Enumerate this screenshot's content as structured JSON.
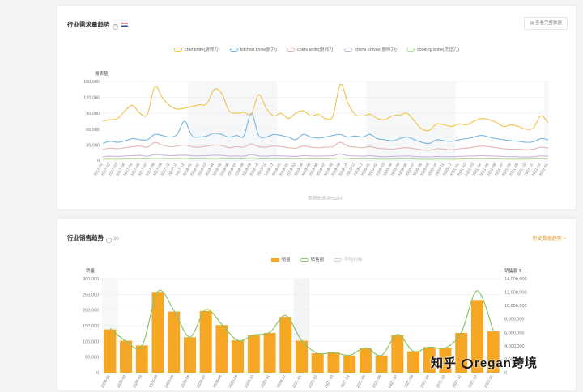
{
  "top_panel": {
    "title": "行业需求量趋势",
    "button_label": "查看完整数据",
    "xlabel_bottom": "数据来源:Amazon"
  },
  "bottom_panel": {
    "title": "行业销售趋势",
    "title_suffix": "30",
    "link_label": "历史数据趋势 >"
  },
  "watermark": {
    "left": "知乎",
    "right": "regan跨境"
  },
  "colors": {
    "chef_knife": "#f0c24a",
    "kitchen_knife": "#79b5de",
    "chefs_knife_alt": "#e3b5b5",
    "chefs_knives": "#c9b6d9",
    "cooking_knife": "#b7dba1",
    "bar": "#f5a623",
    "sales_line": "#8cc46a"
  },
  "chart_data": [
    {
      "type": "line",
      "ylabel": "搜索量",
      "ylim": [
        0,
        150000
      ],
      "yticks": [
        "0",
        "30,000",
        "60,000",
        "90,000",
        "120,000",
        "150,000"
      ],
      "grid": true,
      "legend_position": "top-center",
      "x": [
        "2017-01",
        "2017-02",
        "2017-03",
        "2017-04",
        "2017-05",
        "2017-06",
        "2017-07",
        "2017-08",
        "2017-09",
        "2017-10",
        "2017-11",
        "2017-12",
        "2018-01",
        "2018-02",
        "2018-03",
        "2018-04",
        "2018-05",
        "2018-06",
        "2018-07",
        "2018-08",
        "2018-09",
        "2018-10",
        "2018-11",
        "2018-12",
        "2019-01",
        "2019-02",
        "2019-03",
        "2019-04",
        "2019-05",
        "2019-06",
        "2019-07",
        "2019-08",
        "2019-09",
        "2019-10",
        "2019-11",
        "2019-12",
        "2020-01",
        "2020-02",
        "2020-03",
        "2020-04",
        "2020-05",
        "2020-06",
        "2020-07",
        "2020-08",
        "2020-09",
        "2020-10",
        "2020-11",
        "2020-12",
        "2021-01",
        "2021-02",
        "2021-03",
        "2021-04",
        "2021-05",
        "2021-06",
        "2021-07",
        "2021-08",
        "2021-09",
        "2021-10",
        "2021-11",
        "2021-12",
        "2022-01"
      ],
      "series": [
        {
          "name": "chef knife(厨师刀)",
          "color_key": "chef_knife",
          "values": [
            75000,
            78000,
            80000,
            95000,
            105000,
            90000,
            88000,
            140000,
            120000,
            105000,
            98000,
            100000,
            103000,
            106000,
            108000,
            135000,
            128000,
            95000,
            90000,
            92000,
            88000,
            125000,
            100000,
            85000,
            90000,
            80000,
            90000,
            95000,
            85000,
            88000,
            80000,
            85000,
            145000,
            110000,
            88000,
            85000,
            88000,
            80000,
            78000,
            85000,
            87000,
            90000,
            75000,
            60000,
            58000,
            70000,
            68000,
            65000,
            70000,
            68000,
            75000,
            80000,
            78000,
            73000,
            65000,
            68000,
            65000,
            60000,
            62000,
            85000,
            72000
          ]
        },
        {
          "name": "kitchen knife(厨刀)",
          "color_key": "kitchen_knife",
          "values": [
            33000,
            37000,
            35000,
            38000,
            42000,
            40000,
            40000,
            50000,
            48000,
            45000,
            50000,
            75000,
            48000,
            45000,
            47000,
            52000,
            50000,
            45000,
            48000,
            47000,
            90000,
            48000,
            45000,
            50000,
            48000,
            45000,
            40000,
            50000,
            45000,
            43000,
            45000,
            48000,
            50000,
            45000,
            47000,
            45000,
            50000,
            42000,
            40000,
            38000,
            42000,
            45000,
            40000,
            35000,
            33000,
            40000,
            38000,
            37000,
            40000,
            42000,
            45000,
            48000,
            45000,
            42000,
            40000,
            38000,
            37000,
            35000,
            36000,
            42000,
            40000
          ]
        },
        {
          "name": "chefs knife(厨师刀)",
          "color_key": "chefs_knife_alt",
          "values": [
            22000,
            24000,
            23000,
            25000,
            27000,
            28000,
            26000,
            35000,
            30000,
            27000,
            28000,
            30000,
            27000,
            26000,
            28000,
            30000,
            29000,
            25000,
            27000,
            26000,
            32000,
            27000,
            26000,
            28000,
            27000,
            25000,
            24000,
            28000,
            26000,
            25000,
            26000,
            27000,
            35000,
            28000,
            26000,
            25000,
            27000,
            24000,
            23000,
            22000,
            24000,
            25000,
            23000,
            21000,
            20000,
            23000,
            22000,
            21000,
            23000,
            24000,
            26000,
            28000,
            27000,
            25000,
            23000,
            22000,
            22000,
            21000,
            22000,
            26000,
            24000
          ]
        },
        {
          "name": "chef's knives(厨师刀)",
          "color_key": "chefs_knives",
          "values": [
            8000,
            9000,
            8500,
            9500,
            10000,
            10500,
            9000,
            12000,
            11000,
            10000,
            10500,
            11000,
            10000,
            9500,
            10000,
            11000,
            10500,
            9000,
            9500,
            9000,
            12000,
            9500,
            9000,
            10000,
            9500,
            9000,
            8500,
            10000,
            9500,
            9000,
            9500,
            10000,
            13000,
            10000,
            9500,
            9000,
            10000,
            8500,
            8000,
            8500,
            9000,
            9500,
            8500,
            8000,
            7500,
            8500,
            8000,
            8000,
            8500,
            9000,
            9500,
            10000,
            9500,
            9000,
            8500,
            8000,
            8000,
            7500,
            8000,
            9500,
            9000
          ]
        },
        {
          "name": "cooking knife(烹饪刀)",
          "color_key": "cooking_knife",
          "values": [
            3000,
            3500,
            3200,
            3600,
            4000,
            4200,
            3800,
            5000,
            4500,
            4200,
            4300,
            4600,
            4100,
            4000,
            4200,
            4600,
            4400,
            3900,
            4000,
            3900,
            5200,
            4000,
            3900,
            4200,
            4000,
            3800,
            3600,
            4200,
            4000,
            3800,
            4000,
            4200,
            5500,
            4300,
            4000,
            3900,
            4200,
            3700,
            3500,
            3600,
            3800,
            4000,
            3700,
            3400,
            3200,
            3700,
            3500,
            3400,
            3600,
            3800,
            4000,
            4200,
            4000,
            3800,
            3600,
            3400,
            3400,
            3300,
            3500,
            4100,
            3800
          ]
        }
      ]
    },
    {
      "type": "bar",
      "ylabel": "销量",
      "ylabel_right": "销售额 $",
      "ylim": [
        0,
        300000
      ],
      "yticks": [
        "0",
        "50,000",
        "100,000",
        "150,000",
        "200,000",
        "250,000",
        "300,000"
      ],
      "y2lim": [
        0,
        14000000
      ],
      "y2ticks": [
        "0",
        "2,000,000",
        "4,000,000",
        "6,000,000",
        "8,000,000",
        "10,000,000",
        "12,000,000",
        "14,000,000"
      ],
      "legend_position": "top-center",
      "legend": [
        "销量",
        "销售额",
        "平均价格"
      ],
      "categories": [
        "2020-01",
        "2020-02",
        "2020-03",
        "2020-04",
        "2020-05",
        "2020-06",
        "2020-07",
        "2020-08",
        "2020-09",
        "2020-10",
        "2020-11",
        "2020-12",
        "2021-01",
        "2021-02",
        "2021-03",
        "2021-04",
        "2021-05",
        "2021-06",
        "2021-07",
        "2021-08",
        "2021-09",
        "2021-10",
        "2021-11",
        "2021-12",
        "2022-01"
      ],
      "series": [
        {
          "name": "销量",
          "color_key": "bar",
          "values": [
            138000,
            102000,
            87000,
            258000,
            195000,
            113000,
            197000,
            152000,
            103000,
            120000,
            127000,
            178000,
            102000,
            62000,
            65000,
            55000,
            78000,
            55000,
            120000,
            68000,
            82000,
            80000,
            127000,
            232000,
            132000
          ]
        },
        {
          "name": "销售额",
          "color_key": "sales_line",
          "axis": "right",
          "values": [
            6600000,
            4700000,
            4000000,
            12100000,
            9300000,
            5300000,
            9400000,
            7200000,
            4800000,
            5600000,
            6000000,
            8500000,
            4800000,
            2900000,
            3000000,
            2600000,
            3700000,
            2600000,
            5700000,
            3200000,
            3800000,
            3700000,
            6000000,
            12200000,
            6300000
          ]
        }
      ]
    }
  ]
}
